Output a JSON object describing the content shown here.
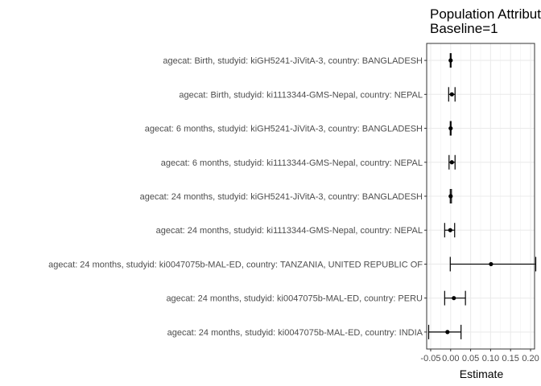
{
  "chart_data": {
    "type": "forest",
    "title_lines": [
      "Population Attributable Fraction",
      "Baseline=1"
    ],
    "xlabel": "Estimate",
    "xlim": [
      -0.06,
      0.21
    ],
    "xticks": [
      -0.05,
      0.0,
      0.05,
      0.1,
      0.15,
      0.2
    ],
    "xtick_labels": [
      "-0.05",
      "0.00",
      "0.05",
      "0.10",
      "0.15",
      "0.20"
    ],
    "grid": true,
    "categories": [
      "agecat: Birth, studyid: kiGH5241-JiVitA-3, country: BANGLADESH",
      "agecat: Birth, studyid: ki1113344-GMS-Nepal, country: NEPAL",
      "agecat: 6 months, studyid: kiGH5241-JiVitA-3, country: BANGLADESH",
      "agecat: 6 months, studyid: ki1113344-GMS-Nepal, country: NEPAL",
      "agecat: 24 months, studyid: kiGH5241-JiVitA-3, country: BANGLADESH",
      "agecat: 24 months, studyid: ki1113344-GMS-Nepal, country: NEPAL",
      "agecat: 24 months, studyid: ki0047075b-MAL-ED, country: TANZANIA, UNITED REPUBLIC OF",
      "agecat: 24 months, studyid: ki0047075b-MAL-ED, country: PERU",
      "agecat: 24 months, studyid: ki0047075b-MAL-ED, country: INDIA"
    ],
    "estimates": [
      0.0,
      0.003,
      0.0,
      0.003,
      0.0,
      -0.001,
      0.101,
      0.008,
      -0.008
    ],
    "lower": [
      -0.001,
      -0.005,
      -0.001,
      -0.004,
      -0.001,
      -0.015,
      -0.001,
      -0.015,
      -0.055
    ],
    "upper": [
      0.001,
      0.011,
      0.001,
      0.011,
      0.002,
      0.01,
      0.213,
      0.037,
      0.026
    ]
  }
}
